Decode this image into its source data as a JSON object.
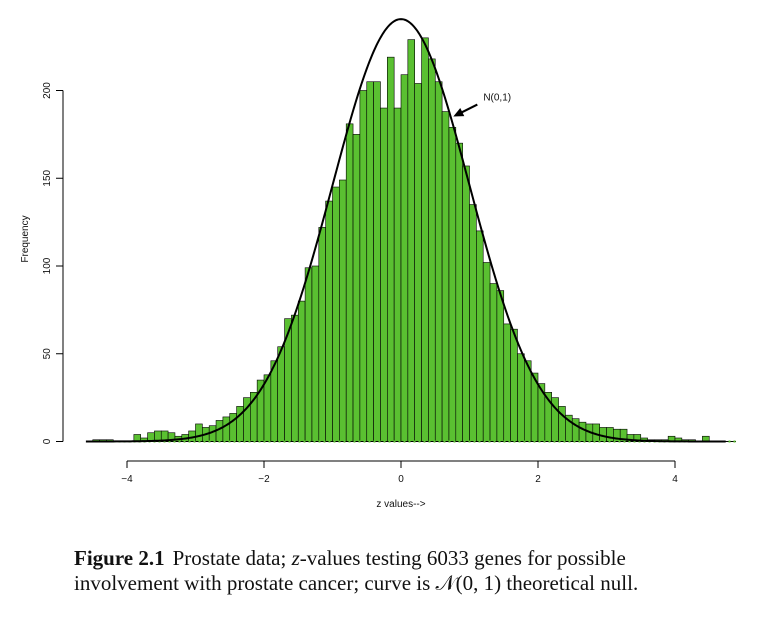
{
  "chart_data": {
    "type": "bar",
    "subtype": "histogram",
    "xlabel": "z values-->",
    "ylabel": "Frequency",
    "xlim": [
      -5,
      4.8
    ],
    "ylim": [
      0,
      240
    ],
    "x_ticks": [
      -4,
      -2,
      0,
      2,
      4
    ],
    "y_ticks": [
      0,
      50,
      100,
      150,
      200
    ],
    "x_tick_labels": [
      "−4",
      "−2",
      "0",
      "2",
      "4"
    ],
    "y_tick_labels": [
      "0",
      "50",
      "100",
      "150",
      "200"
    ],
    "bin_width": 0.1,
    "bins_start": [
      -4.6,
      -4.5,
      -4.4,
      -4.3,
      -4.2,
      -4.1,
      -4.0,
      -3.9,
      -3.8,
      -3.7,
      -3.6,
      -3.5,
      -3.4,
      -3.3,
      -3.2,
      -3.1,
      -3.0,
      -2.9,
      -2.8,
      -2.7,
      -2.6,
      -2.5,
      -2.4,
      -2.3,
      -2.2,
      -2.1,
      -2.0,
      -1.9,
      -1.8,
      -1.7,
      -1.6,
      -1.5,
      -1.4,
      -1.3,
      -1.2,
      -1.1,
      -1.0,
      -0.9,
      -0.8,
      -0.7,
      -0.6,
      -0.5,
      -0.4,
      -0.3,
      -0.2,
      -0.1,
      0.0,
      0.1,
      0.2,
      0.3,
      0.4,
      0.5,
      0.6,
      0.7,
      0.8,
      0.9,
      1.0,
      1.1,
      1.2,
      1.3,
      1.4,
      1.5,
      1.6,
      1.7,
      1.8,
      1.9,
      2.0,
      2.1,
      2.2,
      2.3,
      2.4,
      2.5,
      2.6,
      2.7,
      2.8,
      2.9,
      3.0,
      3.1,
      3.2,
      3.3,
      3.4,
      3.5,
      3.6,
      3.7,
      3.8,
      3.9,
      4.0,
      4.1,
      4.2,
      4.3,
      4.4
    ],
    "frequencies": [
      0,
      1,
      1,
      1,
      0,
      0,
      0,
      4,
      2,
      5,
      6,
      6,
      5,
      3,
      4,
      6,
      10,
      8,
      9,
      12,
      14,
      16,
      20,
      25,
      28,
      35,
      38,
      46,
      54,
      70,
      72,
      80,
      99,
      100,
      122,
      137,
      145,
      149,
      181,
      175,
      200,
      205,
      205,
      190,
      219,
      190,
      209,
      229,
      204,
      230,
      218,
      205,
      188,
      179,
      170,
      157,
      135,
      120,
      102,
      90,
      86,
      67,
      64,
      50,
      46,
      39,
      33,
      28,
      25,
      20,
      15,
      13,
      11,
      10,
      10,
      8,
      8,
      7,
      7,
      4,
      4,
      2,
      1,
      1,
      1,
      3,
      2,
      1,
      1,
      0,
      3
    ],
    "series": [
      {
        "values_key": "frequencies",
        "color": "#5ac031"
      },
      {
        "name": "N(0,1)",
        "type": "line",
        "color": "#000000",
        "scale_total": 6033
      }
    ],
    "annotation": {
      "text": "N(0,1)",
      "points_to_x": 0.72
    },
    "grid": false
  },
  "caption": {
    "label": "Figure 2.1",
    "part1": "Prostate data; ",
    "z": "z",
    "part2": "-values testing 6033 genes for possible involvement with prostate cancer; curve is ",
    "dist": "𝒩(0, 1)",
    "part3": " theoretical null."
  }
}
